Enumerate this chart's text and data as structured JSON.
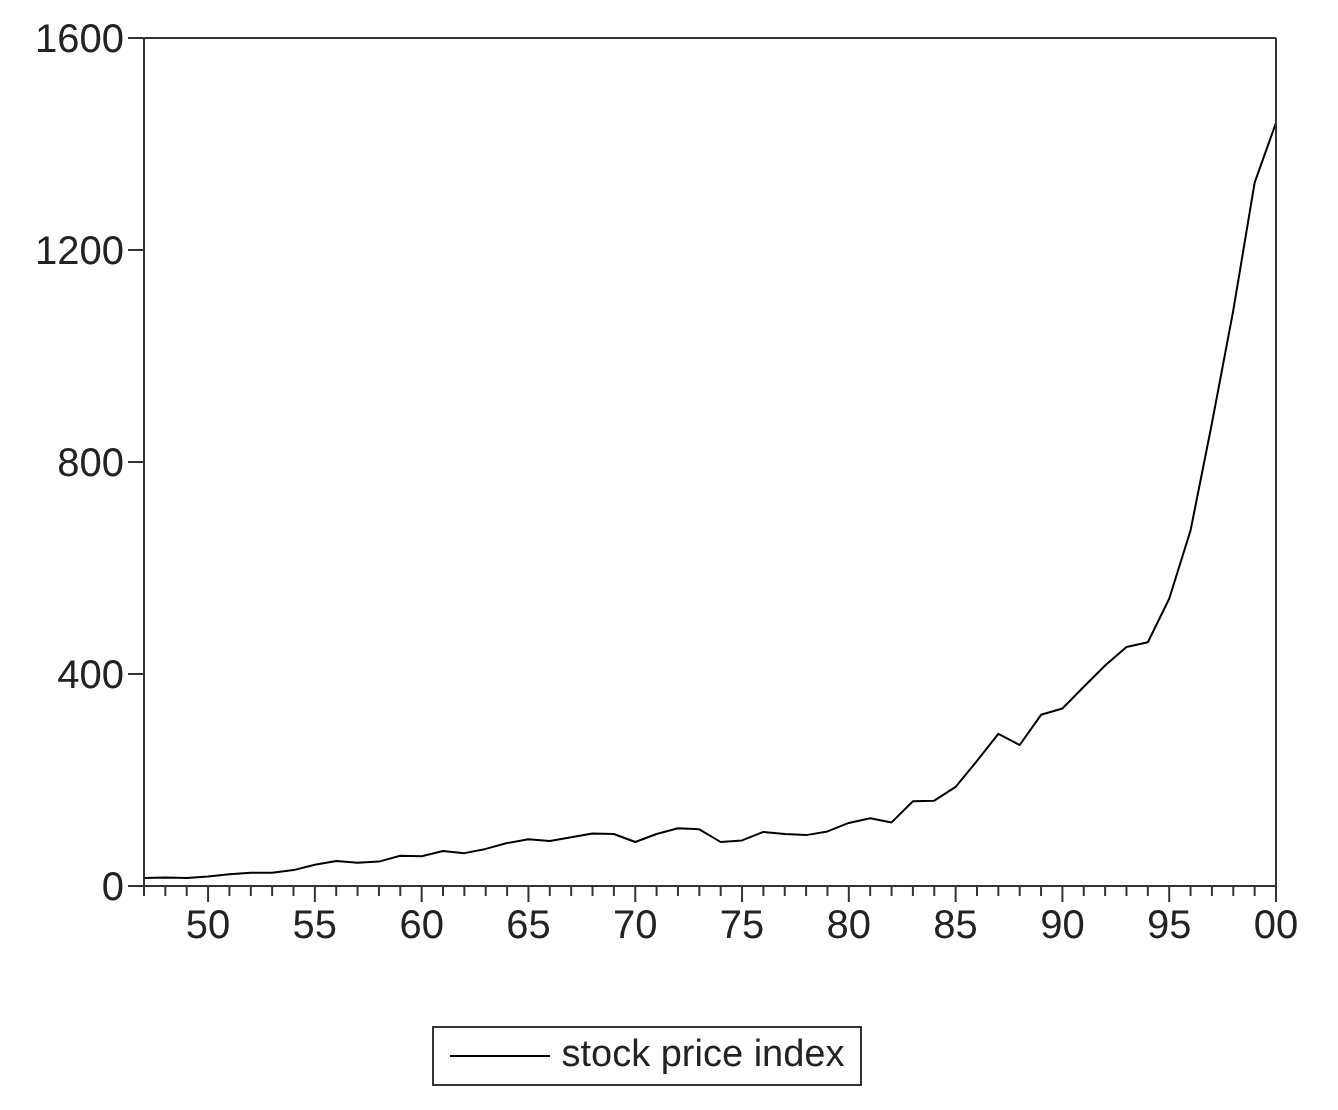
{
  "chart_data": {
    "type": "line",
    "x": [
      1947,
      1948,
      1949,
      1950,
      1951,
      1952,
      1953,
      1954,
      1955,
      1956,
      1957,
      1958,
      1959,
      1960,
      1961,
      1962,
      1963,
      1964,
      1965,
      1966,
      1967,
      1968,
      1969,
      1970,
      1971,
      1972,
      1973,
      1974,
      1975,
      1976,
      1977,
      1978,
      1979,
      1980,
      1981,
      1982,
      1983,
      1984,
      1985,
      1986,
      1987,
      1988,
      1989,
      1990,
      1991,
      1992,
      1993,
      1994,
      1995,
      1996,
      1997,
      1998,
      1999,
      2000
    ],
    "series": [
      {
        "name": "stock price index",
        "color": "#000000",
        "values": [
          15,
          16,
          15,
          18,
          22,
          25,
          25,
          30,
          40,
          47,
          44,
          46,
          57,
          56,
          66,
          62,
          70,
          81,
          88,
          85,
          92,
          99,
          98,
          83,
          98,
          109,
          107,
          83,
          86,
          102,
          98,
          96,
          103,
          119,
          128,
          120,
          160,
          161,
          187,
          236,
          287,
          266,
          323,
          335,
          376,
          416,
          451,
          460,
          542,
          671,
          873,
          1086,
          1327,
          1440
        ]
      }
    ],
    "xlim": [
      1947,
      2000
    ],
    "xticks": [
      {
        "value": 1947,
        "label": null
      },
      {
        "value": 1948,
        "label": null
      },
      {
        "value": 1949,
        "label": null
      },
      {
        "value": 1950,
        "label": "50"
      },
      {
        "value": 1951,
        "label": null
      },
      {
        "value": 1952,
        "label": null
      },
      {
        "value": 1953,
        "label": null
      },
      {
        "value": 1954,
        "label": null
      },
      {
        "value": 1955,
        "label": "55"
      },
      {
        "value": 1956,
        "label": null
      },
      {
        "value": 1957,
        "label": null
      },
      {
        "value": 1958,
        "label": null
      },
      {
        "value": 1959,
        "label": null
      },
      {
        "value": 1960,
        "label": "60"
      },
      {
        "value": 1961,
        "label": null
      },
      {
        "value": 1962,
        "label": null
      },
      {
        "value": 1963,
        "label": null
      },
      {
        "value": 1964,
        "label": null
      },
      {
        "value": 1965,
        "label": "65"
      },
      {
        "value": 1966,
        "label": null
      },
      {
        "value": 1967,
        "label": null
      },
      {
        "value": 1968,
        "label": null
      },
      {
        "value": 1969,
        "label": null
      },
      {
        "value": 1970,
        "label": "70"
      },
      {
        "value": 1971,
        "label": null
      },
      {
        "value": 1972,
        "label": null
      },
      {
        "value": 1973,
        "label": null
      },
      {
        "value": 1974,
        "label": null
      },
      {
        "value": 1975,
        "label": "75"
      },
      {
        "value": 1976,
        "label": null
      },
      {
        "value": 1977,
        "label": null
      },
      {
        "value": 1978,
        "label": null
      },
      {
        "value": 1979,
        "label": null
      },
      {
        "value": 1980,
        "label": "80"
      },
      {
        "value": 1981,
        "label": null
      },
      {
        "value": 1982,
        "label": null
      },
      {
        "value": 1983,
        "label": null
      },
      {
        "value": 1984,
        "label": null
      },
      {
        "value": 1985,
        "label": "85"
      },
      {
        "value": 1986,
        "label": null
      },
      {
        "value": 1987,
        "label": null
      },
      {
        "value": 1988,
        "label": null
      },
      {
        "value": 1989,
        "label": null
      },
      {
        "value": 1990,
        "label": "90"
      },
      {
        "value": 1991,
        "label": null
      },
      {
        "value": 1992,
        "label": null
      },
      {
        "value": 1993,
        "label": null
      },
      {
        "value": 1994,
        "label": null
      },
      {
        "value": 1995,
        "label": "95"
      },
      {
        "value": 1996,
        "label": null
      },
      {
        "value": 1997,
        "label": null
      },
      {
        "value": 1998,
        "label": null
      },
      {
        "value": 1999,
        "label": null
      },
      {
        "value": 2000,
        "label": "00"
      }
    ],
    "ylim": [
      0,
      1600
    ],
    "yticks": [
      0,
      400,
      800,
      1200,
      1600
    ],
    "legend": "bottom",
    "marker": "none",
    "line_style": "solid",
    "grid": false
  }
}
